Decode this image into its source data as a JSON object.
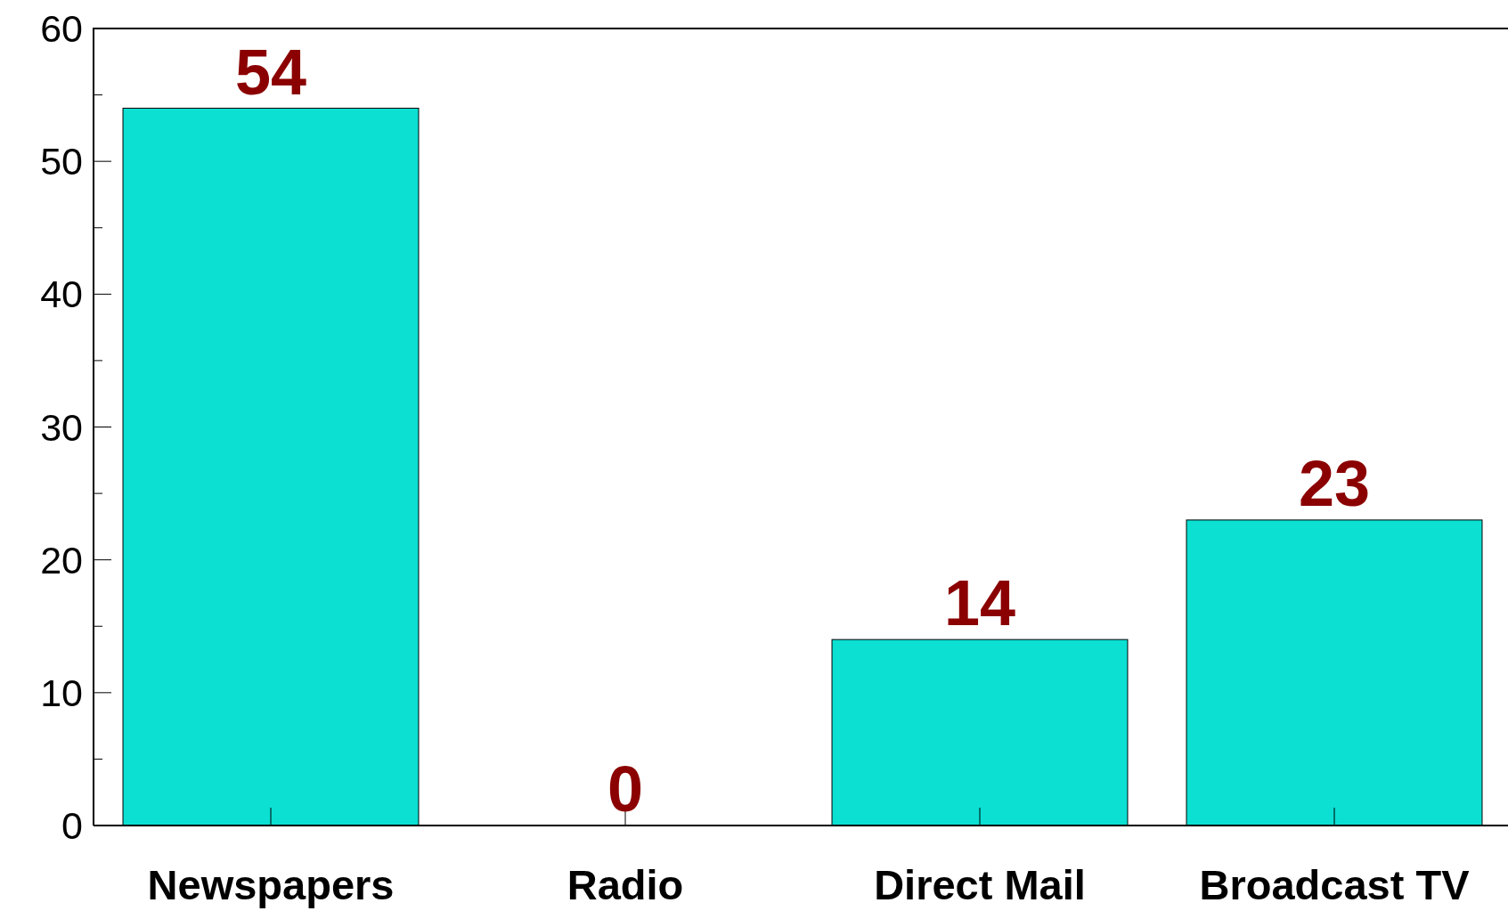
{
  "chart_data": {
    "type": "bar",
    "categories": [
      "Newspapers",
      "Radio",
      "Direct Mail",
      "Broadcast TV"
    ],
    "values": [
      54,
      0,
      14,
      23
    ],
    "color": "#0be0d3",
    "ylim": [
      0,
      60
    ],
    "yticks": [
      0,
      {
        "value": 5,
        "label": null
      },
      10,
      {
        "value": 15,
        "label": null
      },
      20,
      {
        "value": 25,
        "label": null
      },
      30,
      {
        "value": 35,
        "label": null
      },
      40,
      {
        "value": 45,
        "label": null
      },
      50,
      {
        "value": 55,
        "label": null
      },
      60
    ],
    "data_labels": true
  }
}
